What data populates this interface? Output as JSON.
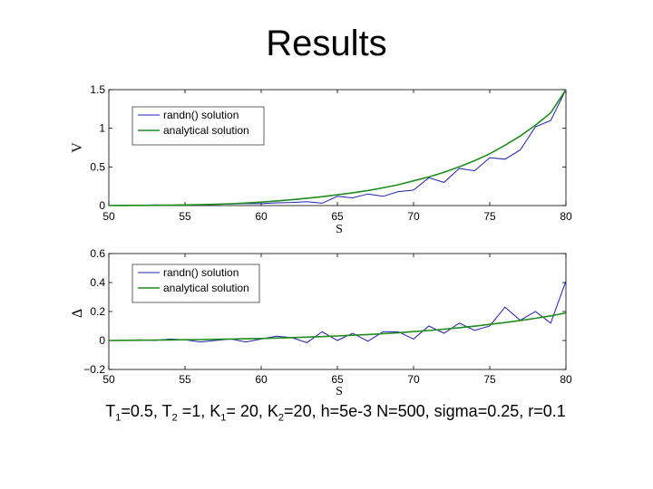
{
  "slide": {
    "title": "Results",
    "caption": {
      "t1_sub": "1",
      "t1_val": "=0.5, ",
      "t2_sub": "2",
      "t2_val": " =1, ",
      "k1_sub": "1",
      "k1_val": "= 20, ",
      "k2_sub": "2",
      "k2_val": "=20, h=5e-3 N=500, sigma=0.25, r=0.1",
      "T": "T",
      "K": "K"
    }
  },
  "chart_data": [
    {
      "type": "line",
      "ylabel": "V",
      "xlabel": "S",
      "xlim": [
        50,
        80
      ],
      "ylim": [
        0,
        1.5
      ],
      "xticks": [
        "50",
        "55",
        "60",
        "65",
        "70",
        "75",
        "80"
      ],
      "yticks": [
        "0",
        "0.5",
        "1",
        "1.5"
      ],
      "grid": false,
      "legend": "top-left",
      "series": [
        {
          "name": "randn() solution",
          "color": "#1f1fb4",
          "x": [
            50,
            51,
            52,
            53,
            54,
            55,
            56,
            57,
            58,
            59,
            60,
            61,
            62,
            63,
            64,
            65,
            66,
            67,
            68,
            69,
            70,
            71,
            72,
            73,
            74,
            75,
            76,
            77,
            78,
            79,
            80
          ],
          "y": [
            0,
            0.005,
            0,
            0.008,
            0.005,
            0.012,
            0.01,
            0.015,
            0.02,
            0.025,
            0.025,
            0.035,
            0.04,
            0.05,
            0.03,
            0.12,
            0.1,
            0.15,
            0.12,
            0.18,
            0.2,
            0.36,
            0.3,
            0.48,
            0.45,
            0.62,
            0.6,
            0.72,
            1.02,
            1.1,
            1.5
          ]
        },
        {
          "name": "analytical solution",
          "color": "#1e8c1e",
          "x": [
            50,
            51,
            52,
            53,
            54,
            55,
            56,
            57,
            58,
            59,
            60,
            61,
            62,
            63,
            64,
            65,
            66,
            67,
            68,
            69,
            70,
            71,
            72,
            73,
            74,
            75,
            76,
            77,
            78,
            79,
            80
          ],
          "y": [
            0,
            0.001,
            0.002,
            0.003,
            0.005,
            0.008,
            0.012,
            0.017,
            0.024,
            0.033,
            0.045,
            0.06,
            0.075,
            0.095,
            0.115,
            0.14,
            0.165,
            0.195,
            0.23,
            0.27,
            0.32,
            0.37,
            0.43,
            0.5,
            0.58,
            0.67,
            0.78,
            0.9,
            1.04,
            1.2,
            1.5
          ]
        }
      ]
    },
    {
      "type": "line",
      "ylabel": "Δ",
      "xlabel": "S",
      "xlim": [
        50,
        80
      ],
      "ylim": [
        -0.2,
        0.6
      ],
      "xticks": [
        "50",
        "55",
        "60",
        "65",
        "70",
        "75",
        "80"
      ],
      "yticks": [
        "−0.2",
        "0",
        "0.2",
        "0.4",
        "0.6"
      ],
      "grid": false,
      "legend": "top-left",
      "series": [
        {
          "name": "randn() solution",
          "color": "#1f1fb4",
          "x": [
            50,
            51,
            52,
            53,
            54,
            55,
            56,
            57,
            58,
            59,
            60,
            61,
            62,
            63,
            64,
            65,
            66,
            67,
            68,
            69,
            70,
            71,
            72,
            73,
            74,
            75,
            76,
            77,
            78,
            79,
            80
          ],
          "y": [
            0,
            0,
            0.005,
            0,
            0.01,
            0.005,
            -0.01,
            0,
            0.01,
            -0.01,
            0.01,
            0.03,
            0.02,
            -0.015,
            0.06,
            0,
            0.05,
            -0.005,
            0.06,
            0.06,
            0.01,
            0.1,
            0.05,
            0.12,
            0.07,
            0.1,
            0.23,
            0.14,
            0.2,
            0.12,
            0.41
          ]
        },
        {
          "name": "analytical solution",
          "color": "#1e8c1e",
          "x": [
            50,
            51,
            52,
            53,
            54,
            55,
            56,
            57,
            58,
            59,
            60,
            61,
            62,
            63,
            64,
            65,
            66,
            67,
            68,
            69,
            70,
            71,
            72,
            73,
            74,
            75,
            76,
            77,
            78,
            79,
            80
          ],
          "y": [
            0,
            0.001,
            0.002,
            0.003,
            0.004,
            0.005,
            0.006,
            0.008,
            0.01,
            0.012,
            0.014,
            0.017,
            0.02,
            0.023,
            0.027,
            0.031,
            0.036,
            0.041,
            0.047,
            0.054,
            0.061,
            0.069,
            0.078,
            0.088,
            0.099,
            0.111,
            0.124,
            0.138,
            0.153,
            0.17,
            0.19
          ]
        }
      ]
    }
  ]
}
